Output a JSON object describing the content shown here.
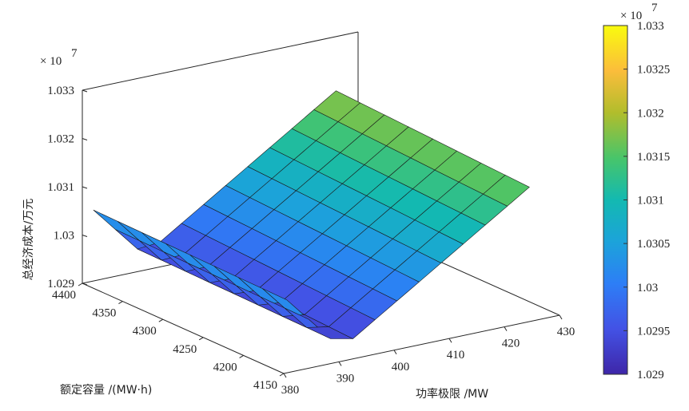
{
  "chart_data": {
    "type": "surface",
    "xlabel": "功率极限 /MW",
    "ylabel": "额定容量 /(MW·h)",
    "zlabel": "总经济成本/万元",
    "x_ticks": [
      "380",
      "390",
      "400",
      "410",
      "420",
      "430"
    ],
    "y_ticks": [
      "4150",
      "4200",
      "4250",
      "4300",
      "4350",
      "4400"
    ],
    "z_ticks": [
      "1.029",
      "1.03",
      "1.031",
      "1.032",
      "1.033"
    ],
    "z_multiplier": "× 10",
    "z_multiplier_exp": "7",
    "xlim": [
      380,
      430
    ],
    "ylim": [
      4150,
      4400
    ],
    "zlim": [
      1.029,
      1.033
    ],
    "z_scale": 10000000,
    "colorbar": {
      "ticks": [
        "1.029",
        "1.0295",
        "1.03",
        "1.0305",
        "1.031",
        "1.0315",
        "1.032",
        "1.0325",
        "1.033"
      ],
      "multiplier": "× 10",
      "multiplier_exp": "7",
      "range": [
        1.029,
        1.033
      ],
      "colormap": "parula"
    },
    "surface_model": {
      "x_grid": [
        382,
        386,
        390,
        394,
        398,
        402,
        406,
        410,
        414,
        418,
        422,
        426
      ],
      "y_grid": [
        4160,
        4190,
        4220,
        4250,
        4280,
        4310,
        4340,
        4370,
        4400
      ],
      "x_minimum_at": 392,
      "z_base": 1.02915,
      "rise_per_MW_right": 0.00074,
      "rise_per_MW_left": 0.00125,
      "rise_per_MWh_right": 8.5e-06,
      "rise_per_MWh_left": 2.8e-06
    },
    "grid": false,
    "box": true
  }
}
